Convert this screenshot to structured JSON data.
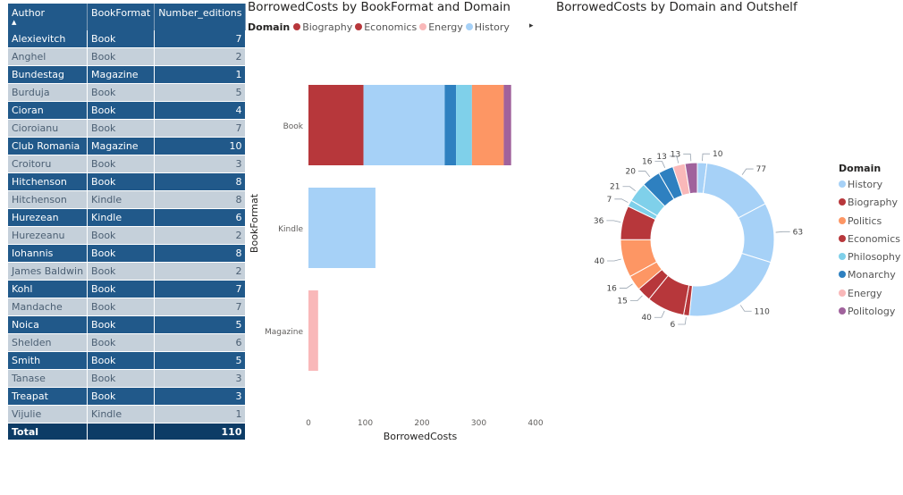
{
  "table": {
    "columns": [
      "Author",
      "BookFormat",
      "Number_editions"
    ],
    "rows": [
      [
        "Alexievitch",
        "Book",
        "7"
      ],
      [
        "Anghel",
        "Book",
        "2"
      ],
      [
        "Bundestag",
        "Magazine",
        "1"
      ],
      [
        "Burduja",
        "Book",
        "5"
      ],
      [
        "Cioran",
        "Book",
        "4"
      ],
      [
        "Cioroianu",
        "Book",
        "7"
      ],
      [
        "Club Romania",
        "Magazine",
        "10"
      ],
      [
        "Croitoru",
        "Book",
        "3"
      ],
      [
        "Hitchenson",
        "Book",
        "8"
      ],
      [
        "Hitchenson",
        "Kindle",
        "8"
      ],
      [
        "Hurezean",
        "Kindle",
        "6"
      ],
      [
        "Hurezeanu",
        "Book",
        "2"
      ],
      [
        "Iohannis",
        "Book",
        "8"
      ],
      [
        "James Baldwin",
        "Book",
        "2"
      ],
      [
        "Kohl",
        "Book",
        "7"
      ],
      [
        "Mandache",
        "Book",
        "7"
      ],
      [
        "Noica",
        "Book",
        "5"
      ],
      [
        "Shelden",
        "Book",
        "6"
      ],
      [
        "Smith",
        "Book",
        "5"
      ],
      [
        "Tanase",
        "Book",
        "3"
      ],
      [
        "Treapat",
        "Book",
        "3"
      ],
      [
        "Vijulie",
        "Kindle",
        "1"
      ]
    ],
    "total_label": "Total",
    "total_value": "110",
    "sort_glyph": "▲"
  },
  "colors": {
    "History": "#a6d1f7",
    "Biography": "#b7373b",
    "Politics": "#fd9664",
    "Economics": "#b7373b",
    "Philosophy": "#7fd0ea",
    "Monarchy": "#2e80c0",
    "Energy": "#f9b8b9",
    "Politology": "#a0629c"
  },
  "chart_data": [
    {
      "type": "bar",
      "orientation": "horizontal",
      "stacked": true,
      "title": "BorrowedCosts by BookFormat and Domain",
      "xlabel": "BorrowedCosts",
      "ylabel": "BookFormat",
      "legend_title": "Domain",
      "legend": [
        "Biography",
        "Economics",
        "Energy",
        "History"
      ],
      "legend_more_glyph": "▸",
      "categories": [
        "Book",
        "Kindle",
        "Magazine"
      ],
      "xlim": [
        0,
        400
      ],
      "xticks": [
        0,
        100,
        200,
        300,
        400
      ],
      "series": [
        {
          "name": "Economics",
          "values": [
            97,
            0,
            0
          ]
        },
        {
          "name": "History",
          "values": [
            143,
            118,
            0
          ]
        },
        {
          "name": "Monarchy",
          "values": [
            20,
            0,
            0
          ]
        },
        {
          "name": "Philosophy",
          "values": [
            28,
            0,
            0
          ]
        },
        {
          "name": "Politics",
          "values": [
            56,
            0,
            0
          ]
        },
        {
          "name": "Politology",
          "values": [
            13,
            0,
            0
          ]
        },
        {
          "name": "Energy",
          "values": [
            0,
            0,
            17
          ]
        }
      ]
    },
    {
      "type": "pie",
      "donut": true,
      "title": "BorrowedCosts by Domain and Outshelf",
      "legend_title": "Domain",
      "legend": [
        "History",
        "Biography",
        "Politics",
        "Economics",
        "Philosophy",
        "Monarchy",
        "Energy",
        "Politology"
      ],
      "slices": [
        {
          "domain": "History",
          "value": 10
        },
        {
          "domain": "History",
          "value": 77
        },
        {
          "domain": "History",
          "value": 63
        },
        {
          "domain": "History",
          "value": 110
        },
        {
          "domain": "Economics",
          "value": 6
        },
        {
          "domain": "Economics",
          "value": 40
        },
        {
          "domain": "Biography",
          "value": 15
        },
        {
          "domain": "Politics",
          "value": 16
        },
        {
          "domain": "Politics",
          "value": 40
        },
        {
          "domain": "Economics",
          "value": 36
        },
        {
          "domain": "Philosophy",
          "value": 7
        },
        {
          "domain": "Philosophy",
          "value": 21
        },
        {
          "domain": "Monarchy",
          "value": 20
        },
        {
          "domain": "Monarchy",
          "value": 16
        },
        {
          "domain": "Energy",
          "value": 13
        },
        {
          "domain": "Politology",
          "value": 13
        }
      ]
    }
  ]
}
